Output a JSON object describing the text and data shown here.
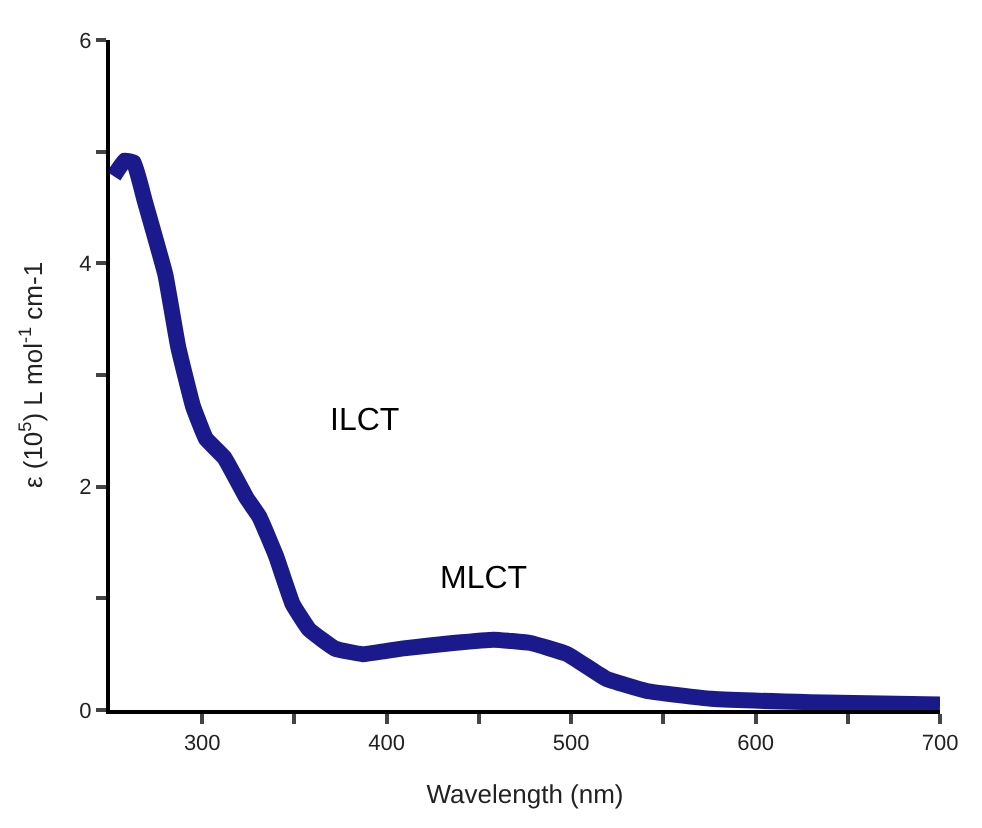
{
  "chart_data": {
    "type": "line",
    "xlabel": "Wavelength (nm)",
    "ylabel": "ε (10$^{5}$) L mol$^{-1}$ cm-1",
    "x": [
      252,
      258,
      263,
      269,
      280,
      287,
      295,
      302,
      312,
      324,
      331,
      340,
      349,
      358,
      372,
      387,
      408,
      436,
      458,
      478,
      498,
      519,
      541,
      576,
      630,
      700
    ],
    "series": [
      {
        "color": "#1a1a8c",
        "values": [
          4.78,
          4.92,
          4.9,
          4.55,
          3.9,
          3.25,
          2.72,
          2.43,
          2.26,
          1.9,
          1.73,
          1.38,
          0.95,
          0.72,
          0.55,
          0.5,
          0.55,
          0.6,
          0.63,
          0.6,
          0.5,
          0.28,
          0.17,
          0.1,
          0.07,
          0.05
        ]
      }
    ],
    "xlim": [
      250,
      700
    ],
    "ylim": [
      0,
      6
    ],
    "xticks": [
      300,
      {
        "value": 350,
        "label": null
      },
      400,
      {
        "value": 450,
        "label": null
      },
      500,
      {
        "value": 550,
        "label": null
      },
      600,
      {
        "value": 650,
        "label": null
      },
      700
    ],
    "yticks": [
      0,
      {
        "value": 1,
        "label": null
      },
      2,
      {
        "value": 3,
        "label": null
      },
      4,
      {
        "value": 5,
        "label": null
      },
      6
    ],
    "annotations": [
      "ILCT",
      "MLCT"
    ],
    "marker": "none",
    "line_style": "solid"
  }
}
